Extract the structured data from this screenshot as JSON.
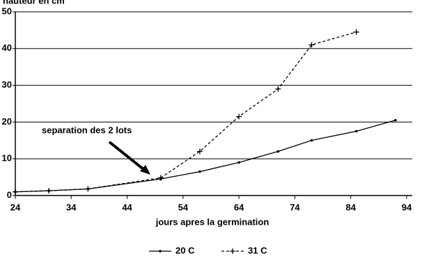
{
  "chart_data": {
    "type": "line",
    "y_label": "hauteur en cm",
    "x_label": "jours apres la germination",
    "annotation": "separation des 2 lots",
    "xlim": [
      24,
      94
    ],
    "xticks": [
      24,
      34,
      44,
      54,
      64,
      74,
      84,
      94
    ],
    "ylim": [
      0,
      50
    ],
    "yticks": [
      0,
      10,
      20,
      30,
      40,
      50
    ],
    "grid": true,
    "series": [
      {
        "name": "20 C",
        "color": "#000000",
        "style": "solid",
        "marker": "dot",
        "x": [
          24,
          30,
          37,
          50,
          57,
          64,
          71,
          77,
          85,
          92
        ],
        "values": [
          1,
          1.3,
          1.8,
          4.5,
          6.5,
          9,
          12,
          15,
          17.5,
          20.5
        ]
      },
      {
        "name": "31 C",
        "color": "#000000",
        "style": "dashed",
        "marker": "plus",
        "x": [
          24,
          30,
          37,
          50,
          57,
          64,
          71,
          77,
          85
        ],
        "values": [
          1,
          1.3,
          1.8,
          4.8,
          12,
          21.5,
          29,
          41,
          44.5
        ]
      }
    ]
  }
}
